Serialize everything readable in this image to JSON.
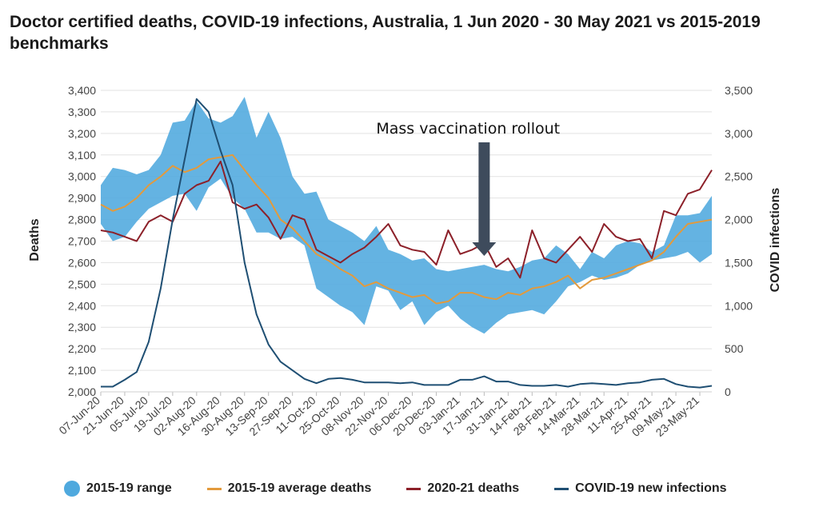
{
  "chart_data": {
    "type": "line",
    "title": "Doctor certified deaths, COVID-19 infections, Australia, 1 Jun 2020 - 30 May 2021 vs 2015-2019 benchmarks",
    "xlabel": "",
    "ylabel": "Deaths",
    "y2label": "COVID infections",
    "ylim": [
      2000,
      3400
    ],
    "y2lim": [
      0,
      3500
    ],
    "yticks": [
      "2,000",
      "2,100",
      "2,200",
      "2,300",
      "2,400",
      "2,500",
      "2,600",
      "2,700",
      "2,800",
      "2,900",
      "3,000",
      "3,100",
      "3,200",
      "3,300",
      "3,400"
    ],
    "y2ticks": [
      "0",
      "500",
      "1,000",
      "1,500",
      "2,000",
      "2,500",
      "3,000",
      "3,500"
    ],
    "x_tick_labels": [
      "07-Jun-20",
      "21-Jun-20",
      "05-Jul-20",
      "19-Jul-20",
      "02-Aug-20",
      "16-Aug-20",
      "30-Aug-20",
      "13-Sep-20",
      "27-Sep-20",
      "11-Oct-20",
      "25-Oct-20",
      "08-Nov-20",
      "22-Nov-20",
      "06-Dec-20",
      "20-Dec-20",
      "03-Jan-21",
      "17-Jan-21",
      "31-Jan-21",
      "14-Feb-21",
      "28-Feb-21",
      "14-Mar-21",
      "28-Mar-21",
      "11-Apr-21",
      "25-Apr-21",
      "09-May-21",
      "23-May-21"
    ],
    "weeks": 52,
    "legend_position": "bottom",
    "grid": "horizontal",
    "annotation": {
      "text": "Mass vaccination rollout",
      "week": 32
    },
    "series": [
      {
        "name": "2015-19 range",
        "axis": "left",
        "color": "#4fa9de",
        "low": [
          2780,
          2700,
          2720,
          2790,
          2850,
          2880,
          2910,
          2920,
          2840,
          2950,
          2990,
          2900,
          2850,
          2740,
          2740,
          2710,
          2720,
          2680,
          2480,
          2440,
          2400,
          2370,
          2310,
          2490,
          2470,
          2380,
          2420,
          2310,
          2370,
          2400,
          2340,
          2300,
          2270,
          2320,
          2360,
          2370,
          2380,
          2360,
          2420,
          2490,
          2510,
          2540,
          2520,
          2530,
          2550,
          2590,
          2610,
          2620,
          2630,
          2650,
          2600,
          2640
        ],
        "high": [
          2960,
          3040,
          3030,
          3010,
          3030,
          3100,
          3250,
          3260,
          3350,
          3270,
          3250,
          3280,
          3370,
          3180,
          3300,
          3180,
          3000,
          2920,
          2930,
          2800,
          2770,
          2740,
          2700,
          2770,
          2660,
          2640,
          2610,
          2620,
          2570,
          2560,
          2570,
          2580,
          2590,
          2570,
          2560,
          2580,
          2610,
          2620,
          2680,
          2640,
          2570,
          2650,
          2620,
          2680,
          2700,
          2690,
          2650,
          2680,
          2820,
          2820,
          2830,
          2910
        ]
      },
      {
        "name": "2015-19 average deaths",
        "axis": "left",
        "color": "#e39a3c",
        "values": [
          2870,
          2840,
          2860,
          2900,
          2960,
          3000,
          3050,
          3020,
          3040,
          3080,
          3090,
          3100,
          3030,
          2960,
          2900,
          2800,
          2760,
          2700,
          2640,
          2610,
          2570,
          2540,
          2490,
          2510,
          2480,
          2460,
          2440,
          2450,
          2410,
          2420,
          2460,
          2460,
          2440,
          2430,
          2460,
          2450,
          2480,
          2490,
          2510,
          2540,
          2480,
          2520,
          2530,
          2550,
          2570,
          2590,
          2610,
          2650,
          2720,
          2780,
          2790,
          2800
        ]
      },
      {
        "name": "2020-21 deaths",
        "axis": "left",
        "color": "#8c2029",
        "values": [
          2750,
          2740,
          2720,
          2700,
          2790,
          2820,
          2790,
          2920,
          2960,
          2980,
          3070,
          2880,
          2850,
          2870,
          2810,
          2710,
          2820,
          2800,
          2660,
          2630,
          2600,
          2640,
          2670,
          2720,
          2780,
          2680,
          2660,
          2650,
          2590,
          2750,
          2640,
          2660,
          2690,
          2580,
          2620,
          2530,
          2750,
          2620,
          2600,
          2660,
          2720,
          2650,
          2780,
          2720,
          2700,
          2710,
          2620,
          2840,
          2820,
          2920,
          2940,
          3030
        ]
      },
      {
        "name": "COVID-19 new infections",
        "axis": "right",
        "color": "#1f4f73",
        "values": [
          60,
          60,
          140,
          230,
          580,
          1200,
          2000,
          2700,
          3400,
          3250,
          2800,
          2400,
          1500,
          900,
          550,
          350,
          250,
          150,
          100,
          150,
          160,
          140,
          110,
          110,
          110,
          100,
          110,
          80,
          80,
          80,
          140,
          140,
          180,
          120,
          120,
          80,
          70,
          70,
          80,
          60,
          90,
          100,
          90,
          80,
          100,
          110,
          140,
          150,
          90,
          60,
          50,
          70
        ]
      }
    ]
  }
}
